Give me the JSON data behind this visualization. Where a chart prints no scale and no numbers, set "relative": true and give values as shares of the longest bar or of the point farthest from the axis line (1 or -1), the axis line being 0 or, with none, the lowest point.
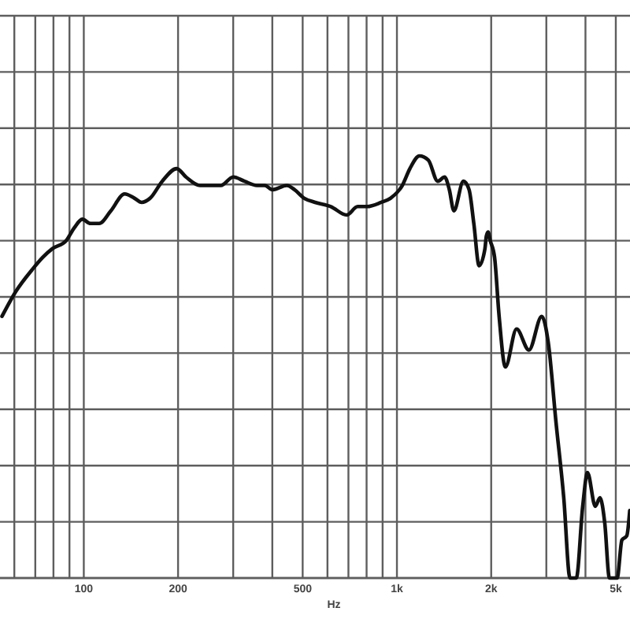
{
  "chart_data": {
    "type": "line",
    "xlabel": "Hz",
    "log": "x",
    "relative": true,
    "grid": true,
    "tick_labels": "x",
    "line_style": "solid",
    "xlim": [
      54,
      5550
    ],
    "xticks": [
      {
        "value": 60,
        "label": null
      },
      {
        "value": 70,
        "label": null
      },
      {
        "value": 80,
        "label": null
      },
      {
        "value": 90,
        "label": null
      },
      100,
      200,
      {
        "value": 300,
        "label": null
      },
      {
        "value": 400,
        "label": null
      },
      500,
      {
        "value": 600,
        "label": null
      },
      {
        "value": 700,
        "label": null
      },
      {
        "value": 800,
        "label": null
      },
      {
        "value": 900,
        "label": null
      },
      {
        "value": 1000,
        "label": "1k"
      },
      {
        "value": 2000,
        "label": "2k"
      },
      {
        "value": 3000,
        "label": null
      },
      {
        "value": 4000,
        "label": null
      },
      {
        "value": 5000,
        "label": "5k"
      }
    ],
    "x": [
      54.8,
      60.8,
      68.3,
      74,
      79.3,
      88,
      93.3,
      98.9,
      105,
      112,
      122,
      135,
      145,
      153,
      163,
      178,
      198,
      212,
      235,
      252,
      274,
      300,
      326,
      357,
      378,
      401,
      445,
      471,
      505,
      548,
      615,
      691,
      749,
      803,
      891,
      955,
      1040,
      1100,
      1180,
      1260,
      1350,
      1420,
      1470,
      1520,
      1630,
      1700,
      1760,
      1830,
      1910,
      1930,
      1955,
      1985,
      2050,
      2120,
      2220,
      2410,
      2640,
      2900,
      3040,
      3220,
      3410,
      3570,
      3740,
      3920,
      4060,
      4300,
      4450,
      4610,
      4770,
      5050,
      5230,
      5420,
      5540
    ],
    "series": [
      {
        "color": "#111111",
        "values": [
          0.62,
          0.68,
          0.73,
          0.76,
          0.78,
          0.8,
          0.83,
          0.85,
          0.84,
          0.84,
          0.87,
          0.91,
          0.9,
          0.89,
          0.9,
          0.94,
          0.97,
          0.95,
          0.93,
          0.93,
          0.93,
          0.95,
          0.94,
          0.93,
          0.93,
          0.92,
          0.93,
          0.92,
          0.9,
          0.89,
          0.88,
          0.86,
          0.88,
          0.88,
          0.89,
          0.9,
          0.93,
          0.97,
          1,
          0.99,
          0.94,
          0.95,
          0.92,
          0.87,
          0.94,
          0.92,
          0.84,
          0.74,
          0.78,
          0.81,
          0.82,
          0.8,
          0.76,
          0.62,
          0.5,
          0.59,
          0.54,
          0.62,
          0.56,
          0.37,
          0.19,
          0,
          0,
          0.17,
          0.25,
          0.17,
          0.19,
          0.13,
          0,
          0,
          0.09,
          0.1,
          0.16
        ]
      }
    ]
  }
}
